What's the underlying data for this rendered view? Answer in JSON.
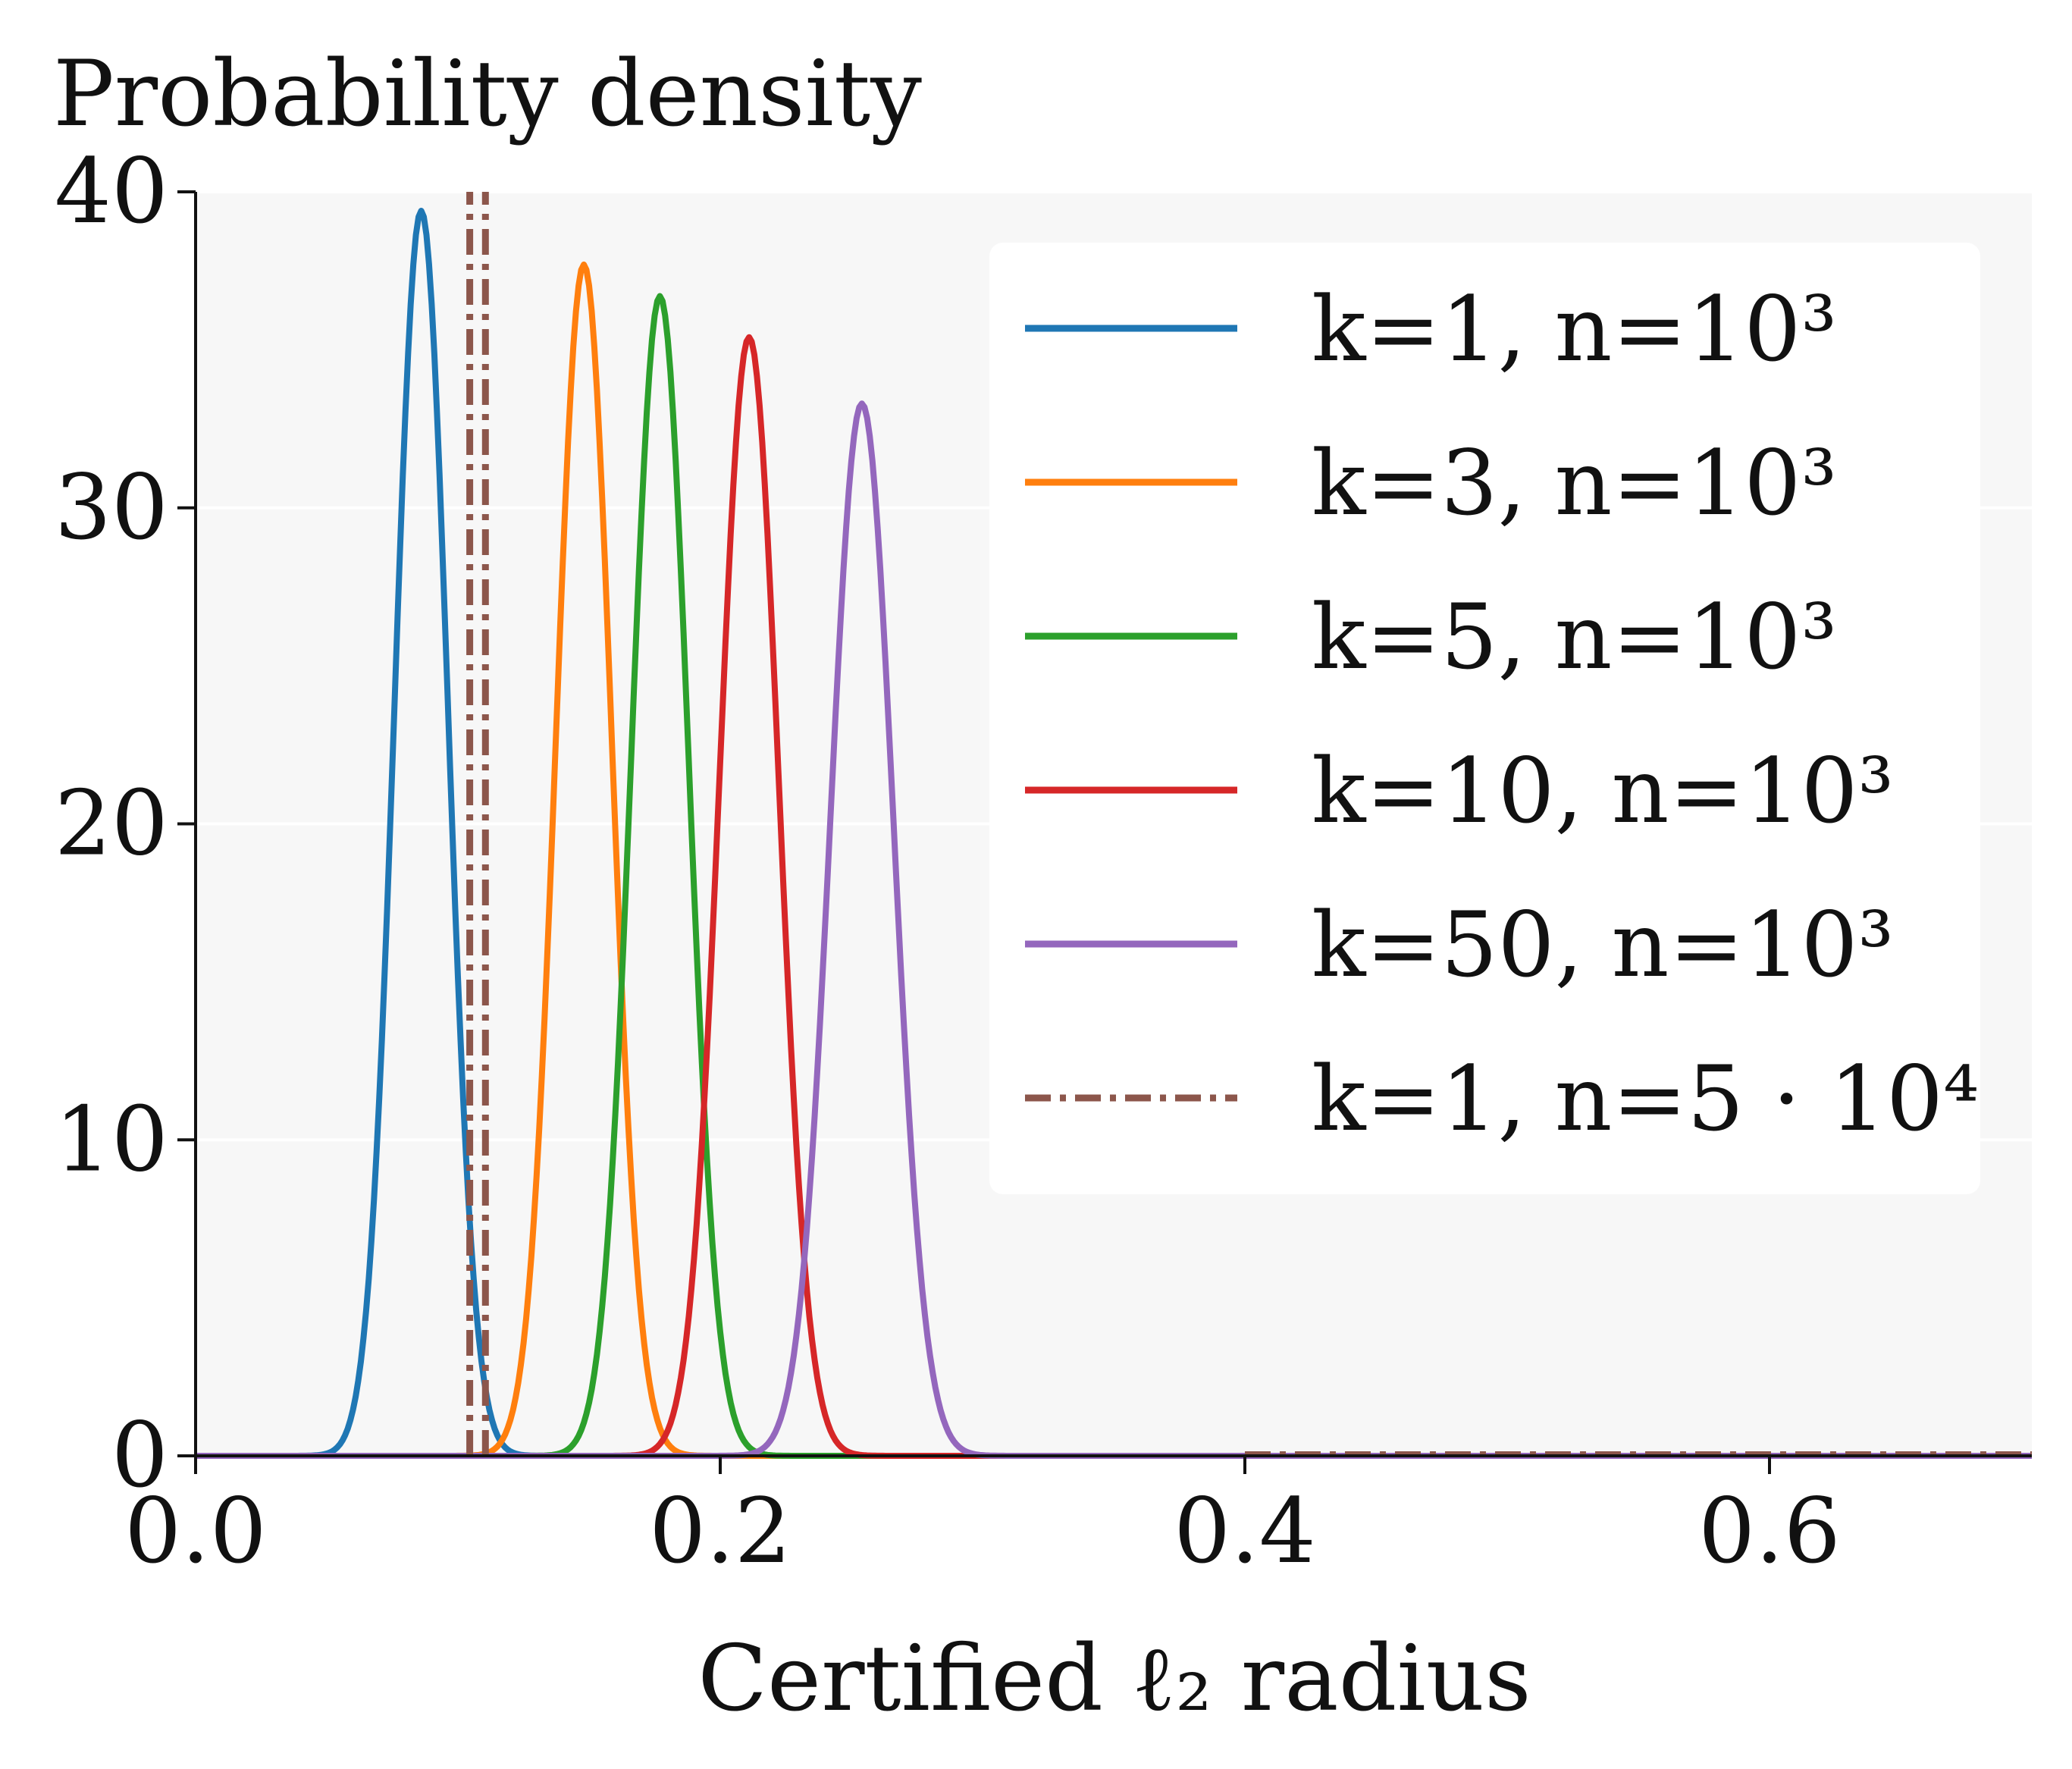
{
  "chart_data": {
    "type": "line",
    "title": "Probability density",
    "xlabel": "Certified ℓ₂ radius",
    "ylabel": "",
    "xlim": [
      0.0,
      0.7
    ],
    "ylim": [
      0,
      40
    ],
    "x_ticks": [
      "0.0",
      "0.2",
      "0.4",
      "0.6"
    ],
    "y_ticks": [
      "0",
      "10",
      "20",
      "30",
      "40"
    ],
    "grid": "horizontal",
    "legend_position": "top-right",
    "series": [
      {
        "name": "k=1, n=10³",
        "style": "solid",
        "color": "#1f77b4",
        "peak_x": 0.086,
        "peak_y": 39.4
      },
      {
        "name": "k=3, n=10³",
        "style": "solid",
        "color": "#ff7f0e",
        "peak_x": 0.148,
        "peak_y": 37.7
      },
      {
        "name": "k=5, n=10³",
        "style": "solid",
        "color": "#2ca02c",
        "peak_x": 0.177,
        "peak_y": 36.7
      },
      {
        "name": "k=10, n=10³",
        "style": "solid",
        "color": "#d62728",
        "peak_x": 0.211,
        "peak_y": 35.4
      },
      {
        "name": "k=50, n=10³",
        "style": "solid",
        "color": "#9467bd",
        "peak_x": 0.254,
        "peak_y": 33.3
      },
      {
        "name": "k=1, n=5 · 10⁴",
        "style": "dashdot",
        "color": "#8c564b",
        "peak_x": 0.11,
        "peak_y": 40
      }
    ]
  }
}
